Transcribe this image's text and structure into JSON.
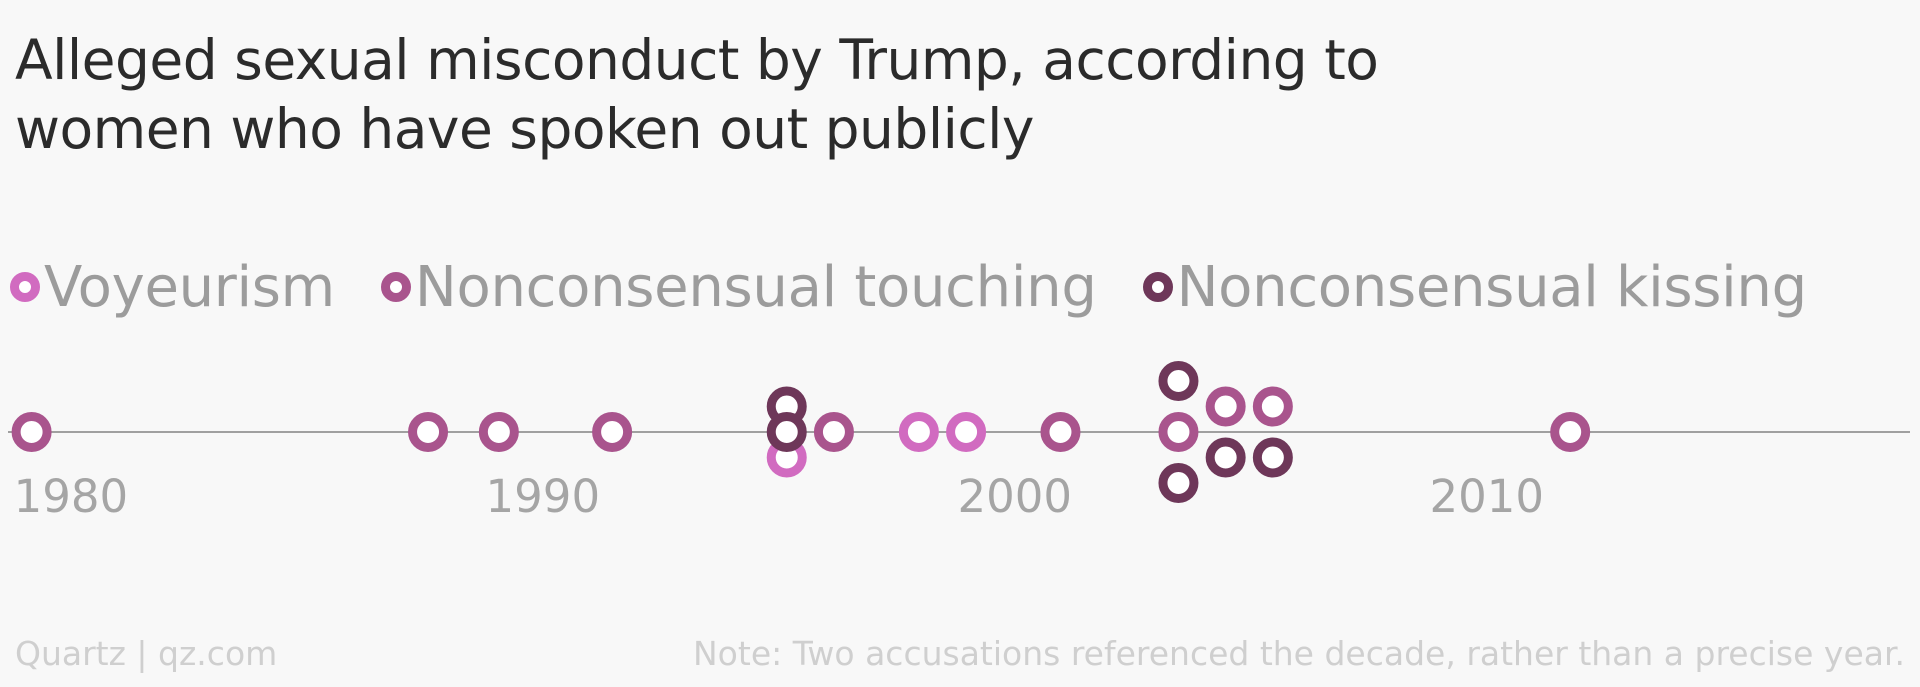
{
  "chart_data": {
    "type": "scatter",
    "title": "Alleged sexual misconduct by Trump, according to women who have spoken out publicly",
    "xlabel": "",
    "ylabel": "",
    "xlim": [
      1979.5,
      2019.8
    ],
    "ticks": [
      "1980",
      "1990",
      "2000",
      "2010"
    ],
    "tick_values": [
      1980,
      1990,
      2000,
      2010
    ],
    "grid": false,
    "legend_position": "top-left",
    "series": [
      {
        "name": "Voyeurism",
        "color": "#d16bc0",
        "points": [
          {
            "year": 1996,
            "stack": -1
          },
          {
            "year": 1998.8,
            "stack": 0
          },
          {
            "year": 1999.8,
            "stack": 0
          }
        ]
      },
      {
        "name": "Nonconsensual touching",
        "color": "#a9548d",
        "points": [
          {
            "year": 1980,
            "stack": 0
          },
          {
            "year": 1988.4,
            "stack": 0
          },
          {
            "year": 1989.9,
            "stack": 0
          },
          {
            "year": 1992.3,
            "stack": 0
          },
          {
            "year": 1997,
            "stack": 0
          },
          {
            "year": 2001.8,
            "stack": 0
          },
          {
            "year": 2004.3,
            "stack": 0
          },
          {
            "year": 2005.3,
            "stack": 1
          },
          {
            "year": 2006.3,
            "stack": 1
          },
          {
            "year": 2012.6,
            "stack": 0
          }
        ]
      },
      {
        "name": "Nonconsensual kissing",
        "color": "#6e3759",
        "points": [
          {
            "year": 1996,
            "stack": 1
          },
          {
            "year": 1996,
            "stack": 0
          },
          {
            "year": 2004.3,
            "stack": 2
          },
          {
            "year": 2004.3,
            "stack": -2
          },
          {
            "year": 2005.3,
            "stack": -1
          },
          {
            "year": 2006.3,
            "stack": -1
          }
        ]
      }
    ]
  },
  "footer": {
    "source": "Quartz | qz.com",
    "note": "Note: Two accusations referenced the decade, rather than a precise year."
  },
  "colors": {
    "axis_line": "#a0a0a0",
    "tick_label": "#a5a5a5",
    "background": "#f8f8f8"
  }
}
